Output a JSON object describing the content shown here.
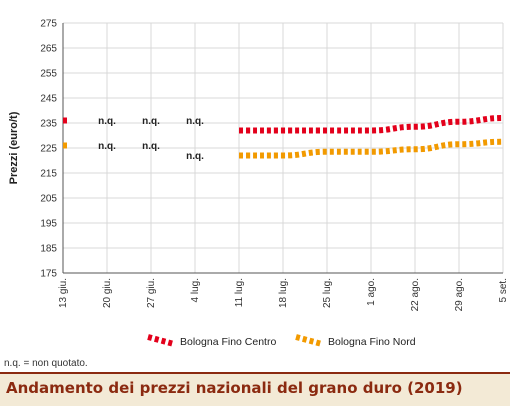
{
  "chart_data": {
    "type": "line",
    "title": "Andamento dei prezzi nazionali del grano duro (2019)",
    "xlabel": "",
    "ylabel": "Prezzi (euro/t)",
    "ylim": [
      175,
      275
    ],
    "yticks": [
      175,
      185,
      195,
      205,
      215,
      225,
      235,
      245,
      255,
      265,
      275
    ],
    "categories": [
      "13 giu.",
      "20 giu.",
      "27 giu.",
      "4 lug.",
      "11 lug.",
      "18 lug.",
      "25 lug.",
      "1 ago.",
      "22 ago.",
      "29 ago.",
      "5 set."
    ],
    "grid": true,
    "legend_position": "bottom",
    "series": [
      {
        "name": "Bologna Fino Centro",
        "color": "#e3001b",
        "values": [
          236,
          null,
          null,
          null,
          232,
          232,
          232,
          232,
          233.5,
          235.5,
          237
        ]
      },
      {
        "name": "Bologna Fino Nord",
        "color": "#f29a00",
        "values": [
          226,
          null,
          null,
          null,
          222,
          222,
          223.5,
          223.5,
          224.5,
          226.5,
          227.5
        ]
      }
    ],
    "annotations": [
      {
        "text": "n.q.",
        "category": "20 giu.",
        "y": 236
      },
      {
        "text": "n.q.",
        "category": "20 giu.",
        "y": 226
      },
      {
        "text": "n.q.",
        "category": "27 giu.",
        "y": 236
      },
      {
        "text": "n.q.",
        "category": "27 giu.",
        "y": 226
      },
      {
        "text": "n.q.",
        "category": "4 lug.",
        "y": 236
      },
      {
        "text": "n.q.",
        "category": "4 lug.",
        "y": 222
      }
    ]
  },
  "footnote": "n.q. = non quotato."
}
